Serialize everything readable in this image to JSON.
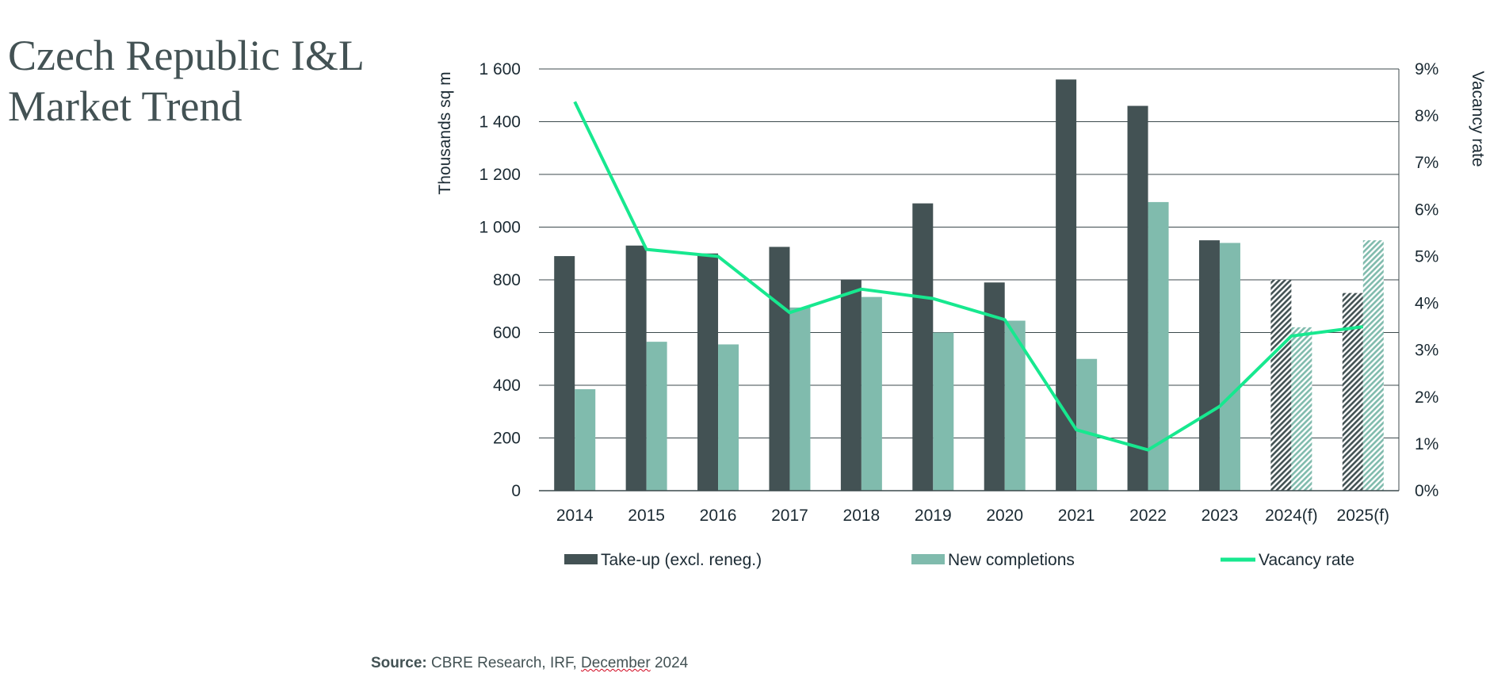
{
  "title_lines": [
    "Czech Republic I&L",
    "Market Trend"
  ],
  "source": {
    "label": "Source:",
    "text_before": " CBRE Research, IRF, ",
    "highlighted": "December",
    "text_after": " 2024"
  },
  "colors": {
    "take_up": "#435254",
    "completions": "#80bbad",
    "vacancy": "#17e88f",
    "grid": "#3c4a4d",
    "text": "#1b2a33"
  },
  "chart_data": {
    "type": "bar",
    "categories": [
      "2014",
      "2015",
      "2016",
      "2017",
      "2018",
      "2019",
      "2020",
      "2021",
      "2022",
      "2023",
      "2024(f)",
      "2025(f)"
    ],
    "forecast_categories": [
      "2024(f)",
      "2025(f)"
    ],
    "ylabel": "Thousands sq m",
    "y2label": "Vacancy rate",
    "ylim": [
      0,
      1600
    ],
    "y2lim": [
      0,
      9
    ],
    "yticks": [
      "1 600",
      "1 400",
      "1 200",
      "1 000",
      "800",
      "600",
      "400",
      "200",
      "0"
    ],
    "y2ticks": [
      "9%",
      "8%",
      "7%",
      "6%",
      "5%",
      "4%",
      "3%",
      "2%",
      "1%",
      "0%"
    ],
    "grid": true,
    "legend_position": "bottom",
    "series": [
      {
        "name": "Take-up (excl. reneg.)",
        "type": "bar",
        "values": [
          890,
          930,
          900,
          925,
          800,
          1090,
          790,
          1560,
          1460,
          950,
          800,
          750
        ]
      },
      {
        "name": "New completions",
        "type": "bar",
        "values": [
          385,
          565,
          555,
          695,
          735,
          600,
          645,
          500,
          1095,
          940,
          620,
          950
        ]
      },
      {
        "name": "Vacancy rate",
        "type": "line",
        "axis": "right",
        "values": [
          8.3,
          5.15,
          5.0,
          3.8,
          4.3,
          4.1,
          3.65,
          1.3,
          0.87,
          1.8,
          3.3,
          3.5
        ]
      }
    ]
  }
}
